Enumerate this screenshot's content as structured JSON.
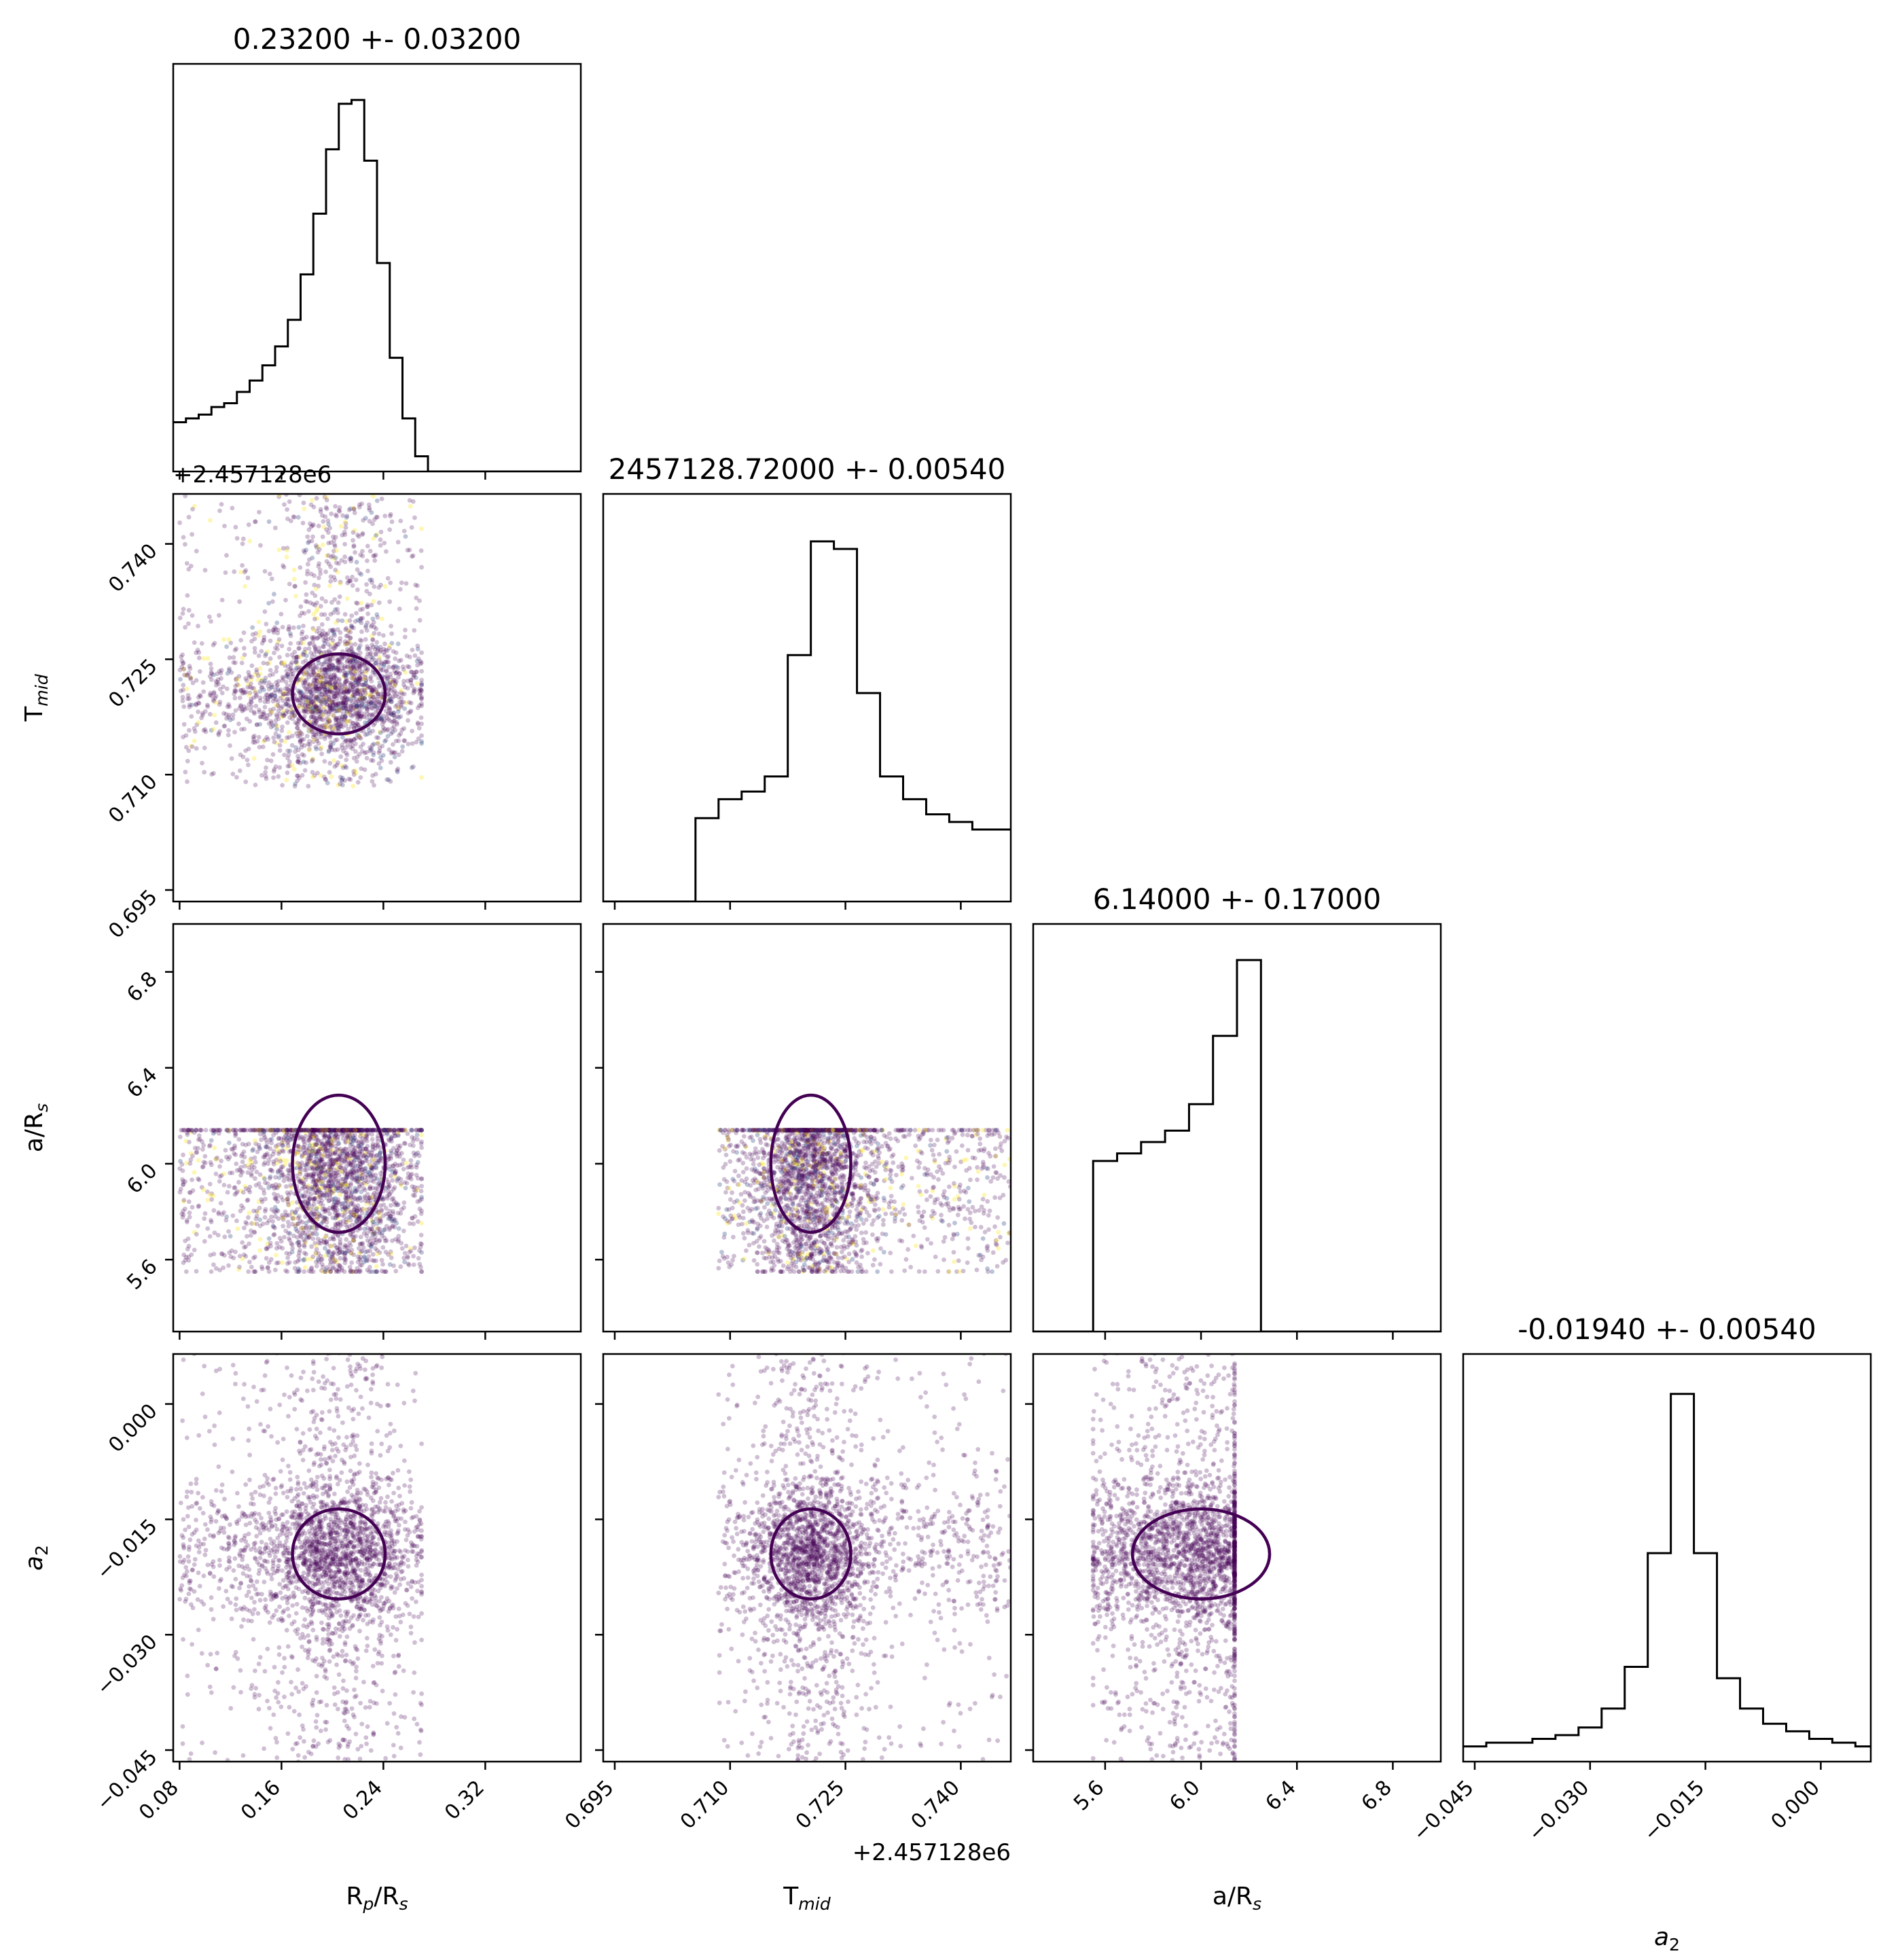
{
  "chart_data": {
    "type": "corner",
    "colors": {
      "contour": "#440154",
      "scatter": "#440154",
      "hist": "#000000",
      "speckle": [
        "#fde725",
        "#21918c",
        "#3b528b",
        "#5ec962"
      ]
    },
    "params": [
      {
        "key": "rp",
        "label": "R_p/R_s",
        "range": [
          0.075,
          0.395
        ],
        "ticks": [
          0.08,
          0.16,
          0.24,
          0.32
        ],
        "ticklabels": [
          "0.08",
          "0.16",
          "0.24",
          "0.32"
        ]
      },
      {
        "key": "tmid",
        "label": "T_mid",
        "range": [
          0.6935,
          0.7465
        ],
        "ticks": [
          0.695,
          0.71,
          0.725,
          0.74
        ],
        "ticklabels": [
          "0.695",
          "0.710",
          "0.725",
          "0.740"
        ],
        "offset": "+2.457128e6"
      },
      {
        "key": "ars",
        "label": "a/R_s",
        "range": [
          5.3,
          7.0
        ],
        "ticks": [
          5.6,
          6.0,
          6.4,
          6.8
        ],
        "ticklabels": [
          "5.6",
          "6.0",
          "6.4",
          "6.8"
        ]
      },
      {
        "key": "a2",
        "label": "a_2",
        "range": [
          -0.0465,
          0.0065
        ],
        "ticks": [
          -0.045,
          -0.03,
          -0.015,
          0.0
        ],
        "ticklabels": [
          "−0.045",
          "−0.030",
          "−0.015",
          "0.000"
        ]
      }
    ],
    "titles": [
      "0.23200 +- 0.03200",
      "2457128.72000 +- 0.00540",
      "6.14000 +- 0.17000",
      "-0.01940 +- 0.00540"
    ],
    "histograms": [
      {
        "x": [
          0.075,
          0.085,
          0.095,
          0.105,
          0.115,
          0.125,
          0.135,
          0.145,
          0.155,
          0.165,
          0.175,
          0.185,
          0.195,
          0.205,
          0.215,
          0.225,
          0.235,
          0.245,
          0.255,
          0.265,
          0.275
        ],
        "y": [
          0.13,
          0.14,
          0.15,
          0.17,
          0.18,
          0.21,
          0.24,
          0.28,
          0.33,
          0.4,
          0.52,
          0.68,
          0.85,
          0.97,
          0.98,
          0.82,
          0.55,
          0.3,
          0.14,
          0.04,
          0.0
        ]
      },
      {
        "x": [
          0.6935,
          0.6965,
          0.6995,
          0.7025,
          0.7055,
          0.7085,
          0.7115,
          0.7145,
          0.7175,
          0.7205,
          0.7235,
          0.7265,
          0.7295,
          0.7325,
          0.7355,
          0.7385,
          0.7415,
          0.7445
        ],
        "y": [
          0.0,
          0.0,
          0.0,
          0.0,
          0.22,
          0.27,
          0.29,
          0.33,
          0.65,
          0.95,
          0.93,
          0.55,
          0.33,
          0.27,
          0.23,
          0.21,
          0.19,
          0.19
        ]
      },
      {
        "x": [
          5.3,
          5.4,
          5.5,
          5.55,
          5.65,
          5.75,
          5.85,
          5.95,
          6.05,
          6.15,
          6.25,
          6.35,
          6.45,
          6.55,
          6.65,
          6.75,
          6.85
        ],
        "y": [
          0.0,
          0.0,
          0.0,
          0.45,
          0.47,
          0.5,
          0.53,
          0.6,
          0.78,
          0.98,
          0.0,
          0.0,
          0.0,
          0.0,
          0.0,
          0.0,
          0.0
        ]
      },
      {
        "x": [
          -0.0465,
          -0.0435,
          -0.0405,
          -0.0375,
          -0.0345,
          -0.0315,
          -0.0285,
          -0.0255,
          -0.0225,
          -0.0195,
          -0.0165,
          -0.0135,
          -0.0105,
          -0.0075,
          -0.0045,
          -0.0015,
          0.0015,
          0.0045
        ],
        "y": [
          0.04,
          0.05,
          0.05,
          0.06,
          0.07,
          0.09,
          0.14,
          0.25,
          0.55,
          0.97,
          0.55,
          0.22,
          0.14,
          0.1,
          0.08,
          0.06,
          0.05,
          0.04
        ]
      }
    ],
    "mcmc": {
      "mean": {
        "rp": 0.205,
        "tmid": 0.7205,
        "ars": 6.0,
        "a2": -0.0195
      },
      "sd": {
        "rp": 0.028,
        "tmid": 0.004,
        "ars": 0.22,
        "a2": 0.0045
      },
      "bounds": {
        "rp": [
          0.08,
          0.27
        ],
        "tmid": [
          0.7085,
          0.7465
        ],
        "ars": [
          5.55,
          6.14
        ],
        "a2": [
          -0.05,
          0.01
        ]
      },
      "n": 2500
    }
  }
}
